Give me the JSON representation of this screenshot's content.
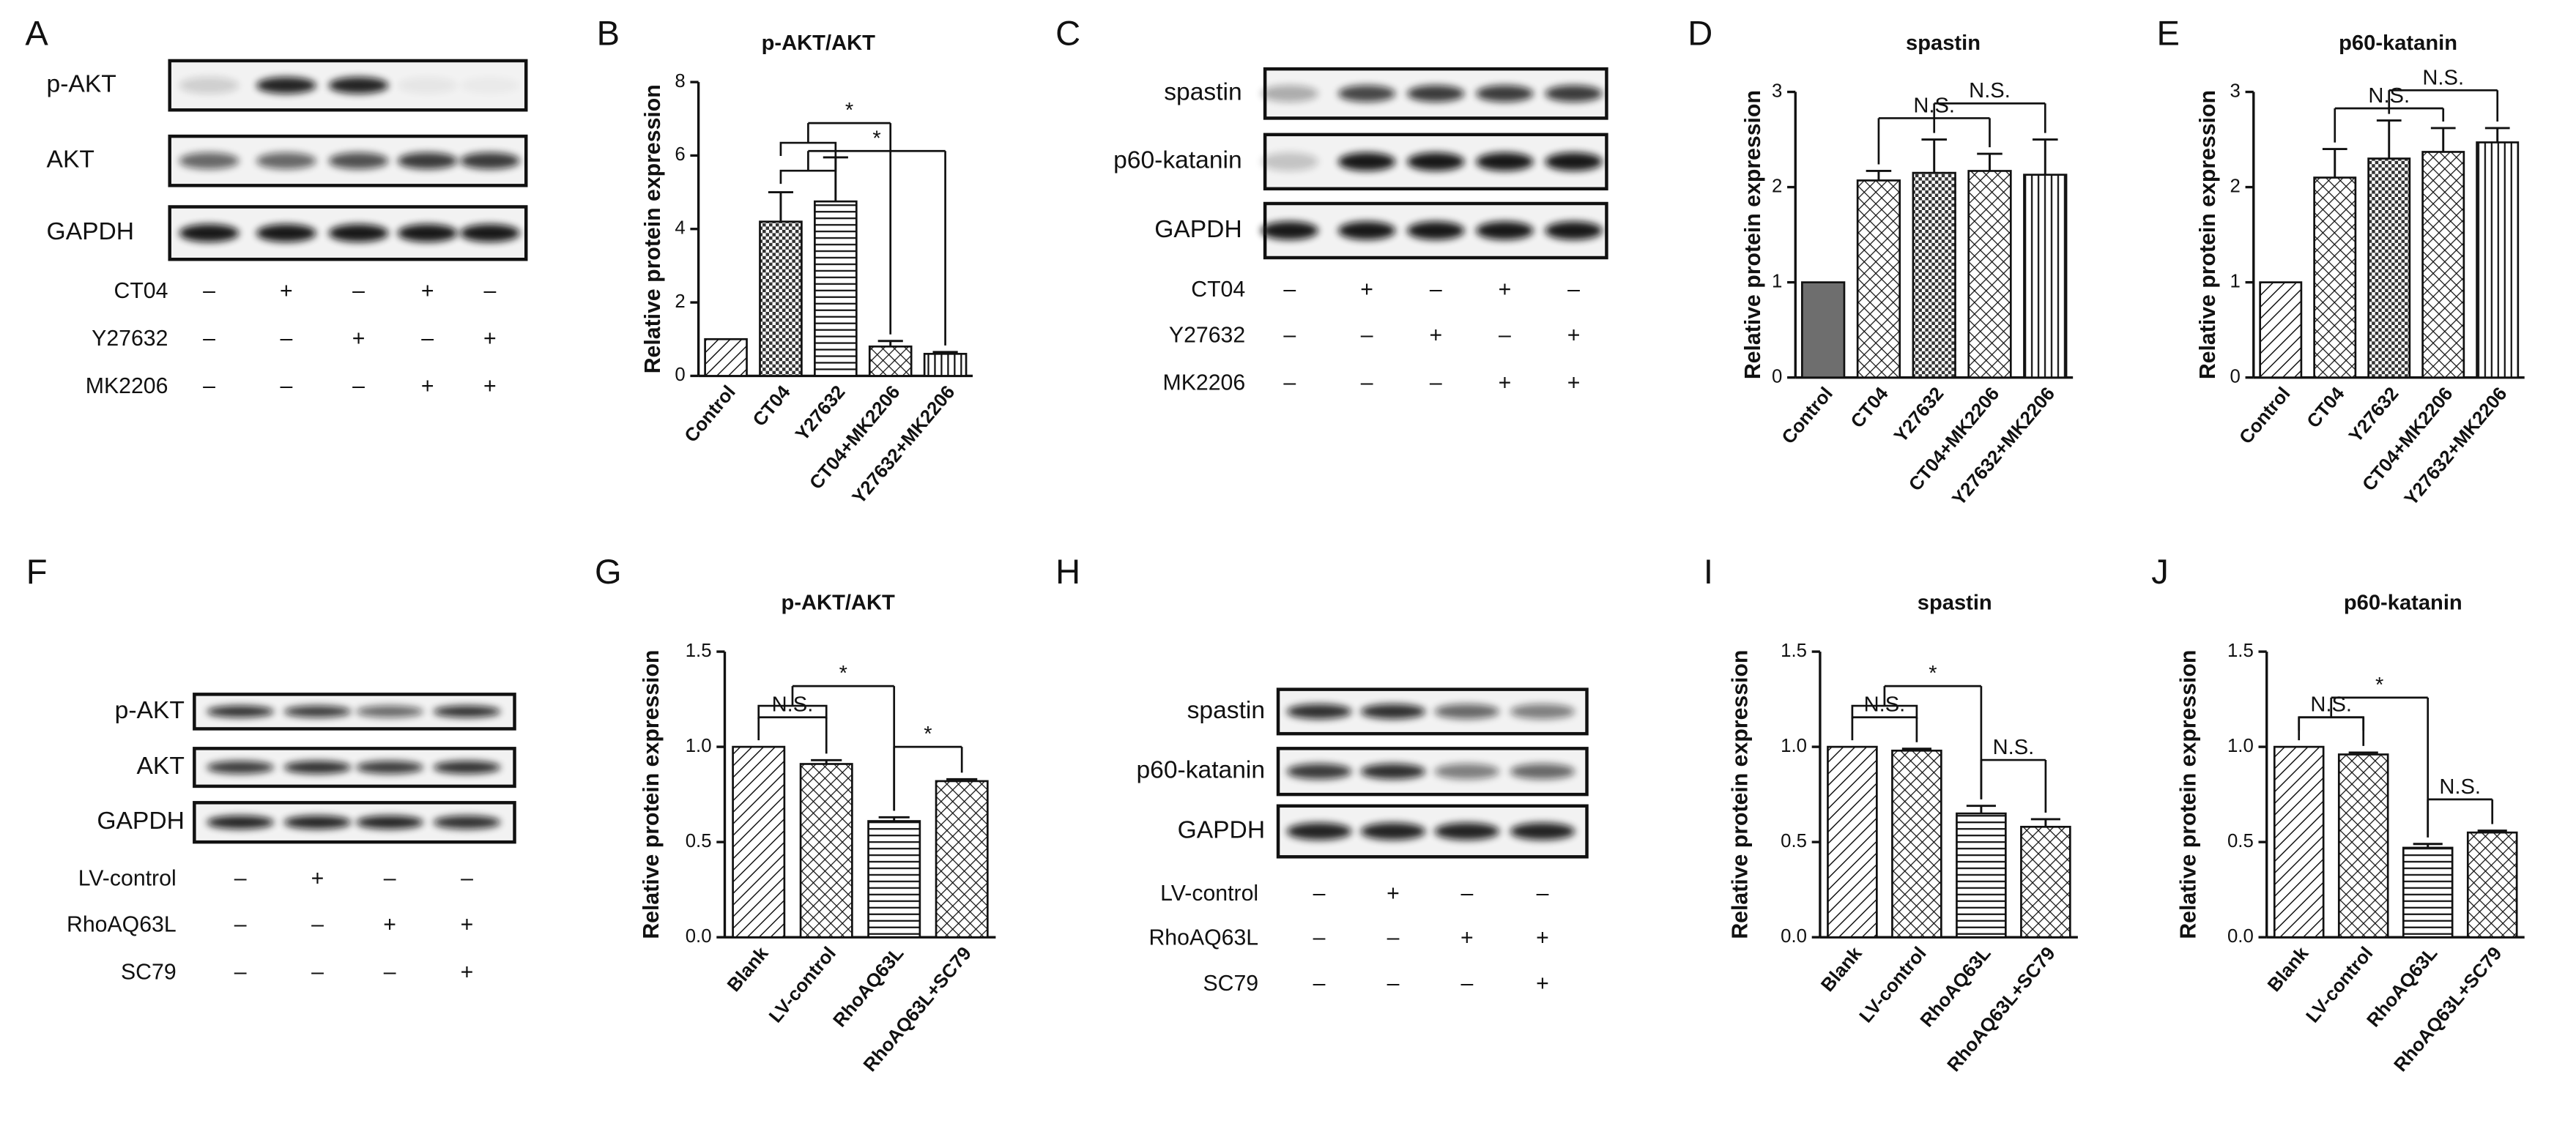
{
  "blots": [
    {
      "label": "A",
      "rows": [
        "p-AKT",
        "AKT",
        "GAPDH"
      ],
      "conditions": [
        {
          "name": "CT04",
          "signs": [
            "–",
            "+",
            "–",
            "+",
            "–"
          ]
        },
        {
          "name": "Y27632",
          "signs": [
            "–",
            "–",
            "+",
            "–",
            "+"
          ]
        },
        {
          "name": "MK2206",
          "signs": [
            "–",
            "–",
            "–",
            "+",
            "+"
          ]
        }
      ]
    },
    {
      "label": "C",
      "rows": [
        "spastin",
        "p60-katanin",
        "GAPDH"
      ],
      "conditions": [
        {
          "name": "CT04",
          "signs": [
            "–",
            "+",
            "–",
            "+",
            "–"
          ]
        },
        {
          "name": "Y27632",
          "signs": [
            "–",
            "–",
            "+",
            "–",
            "+"
          ]
        },
        {
          "name": "MK2206",
          "signs": [
            "–",
            "–",
            "–",
            "+",
            "+"
          ]
        }
      ]
    },
    {
      "label": "F",
      "rows": [
        "p-AKT",
        "AKT",
        "GAPDH"
      ],
      "conditions": [
        {
          "name": "LV-control",
          "signs": [
            "–",
            "+",
            "–",
            "–"
          ]
        },
        {
          "name": "RhoAQ63L",
          "signs": [
            "–",
            "–",
            "+",
            "+"
          ]
        },
        {
          "name": "SC79",
          "signs": [
            "–",
            "–",
            "–",
            "+"
          ]
        }
      ]
    },
    {
      "label": "H",
      "rows": [
        "spastin",
        "p60-katanin",
        "GAPDH"
      ],
      "conditions": [
        {
          "name": "LV-control",
          "signs": [
            "–",
            "+",
            "–",
            "–"
          ]
        },
        {
          "name": "RhoAQ63L",
          "signs": [
            "–",
            "–",
            "+",
            "+"
          ]
        },
        {
          "name": "SC79",
          "signs": [
            "–",
            "–",
            "–",
            "+"
          ]
        }
      ]
    }
  ],
  "chart_data": [
    {
      "type": "bar",
      "label": "B",
      "title": "p-AKT/AKT",
      "y_label": "Relative protein expression",
      "categories": [
        "Control",
        "CT04",
        "Y27632",
        "CT04+MK2206",
        "Y27632+MK2206"
      ],
      "values": [
        1,
        4.2,
        4.75,
        0.8,
        0.6
      ],
      "errors": [
        null,
        0.8,
        1.2,
        0.15,
        0.05
      ],
      "patterns": [
        "diag",
        "grid",
        "hlines",
        "cross",
        "vlines"
      ],
      "ylim": [
        0,
        8
      ],
      "yticks": [
        0,
        2,
        4,
        6,
        8
      ],
      "annotations": [
        "*",
        "*"
      ]
    },
    {
      "type": "bar",
      "label": "D",
      "title": "spastin",
      "y_label": "Relative protein expression",
      "categories": [
        "Control",
        "CT04",
        "Y27632",
        "CT04+MK2206",
        "Y27632+MK2206"
      ],
      "values": [
        1,
        2.07,
        2.15,
        2.17,
        2.13
      ],
      "errors": [
        null,
        0.1,
        0.35,
        0.18,
        0.37
      ],
      "patterns": [
        "solid",
        "cross",
        "grid",
        "cross",
        "vlines"
      ],
      "ylim": [
        0,
        3
      ],
      "yticks": [
        0,
        1,
        2,
        3
      ],
      "annotations": [
        "N.S.",
        "N.S."
      ]
    },
    {
      "type": "bar",
      "label": "E",
      "title": "p60-katanin",
      "y_label": "Relative protein expression",
      "categories": [
        "Control",
        "CT04",
        "Y27632",
        "CT04+MK2206",
        "Y27632+MK2206"
      ],
      "values": [
        1,
        2.1,
        2.3,
        2.37,
        2.47
      ],
      "errors": [
        null,
        0.3,
        0.4,
        0.25,
        0.15
      ],
      "patterns": [
        "diag",
        "cross",
        "grid",
        "cross",
        "vlines"
      ],
      "ylim": [
        0,
        3
      ],
      "yticks": [
        0,
        1,
        2,
        3
      ],
      "annotations": [
        "N.S.",
        "N.S."
      ]
    },
    {
      "type": "bar",
      "label": "G",
      "title": "p-AKT/AKT",
      "y_label": "Relative protein expression",
      "categories": [
        "Blank",
        "LV-control",
        "RhoAQ63L",
        "RhoAQ63L+SC79"
      ],
      "values": [
        1,
        0.91,
        0.61,
        0.82
      ],
      "errors": [
        null,
        0.02,
        0.02,
        0.01
      ],
      "patterns": [
        "diag",
        "cross",
        "hlines",
        "cross"
      ],
      "ylim": [
        0,
        1.5
      ],
      "yticks": [
        {
          "value": 0,
          "label": "0.0"
        },
        0.5,
        {
          "value": 1,
          "label": "1.0"
        },
        1.5
      ],
      "annotations": [
        "N.S.",
        "*",
        "*"
      ]
    },
    {
      "type": "bar",
      "label": "I",
      "title": "spastin",
      "y_label": "Relative protein expression",
      "categories": [
        "Blank",
        "LV-control",
        "RhoAQ63L",
        "RhoAQ63L+SC79"
      ],
      "values": [
        1,
        0.98,
        0.65,
        0.58
      ],
      "errors": [
        null,
        0.01,
        0.04,
        0.04
      ],
      "patterns": [
        "diag",
        "cross",
        "hlines",
        "cross"
      ],
      "ylim": [
        0,
        1.5
      ],
      "yticks": [
        {
          "value": 0,
          "label": "0.0"
        },
        0.5,
        {
          "value": 1,
          "label": "1.0"
        },
        1.5
      ],
      "annotations": [
        "N.S.",
        "*",
        "N.S."
      ]
    },
    {
      "type": "bar",
      "label": "J",
      "title": "p60-katanin",
      "y_label": "Relative protein expression",
      "categories": [
        "Blank",
        "LV-control",
        "RhoAQ63L",
        "RhoAQ63L+SC79"
      ],
      "values": [
        1,
        0.96,
        0.47,
        0.55
      ],
      "errors": [
        null,
        0.01,
        0.02,
        0.01
      ],
      "patterns": [
        "diag",
        "cross",
        "hlines",
        "cross"
      ],
      "ylim": [
        0,
        1.5
      ],
      "yticks": [
        {
          "value": 0,
          "label": "0.0"
        },
        0.5,
        {
          "value": 1,
          "label": "1.0"
        },
        1.5
      ],
      "annotations": [
        "N.S.",
        "*",
        "N.S."
      ]
    }
  ]
}
